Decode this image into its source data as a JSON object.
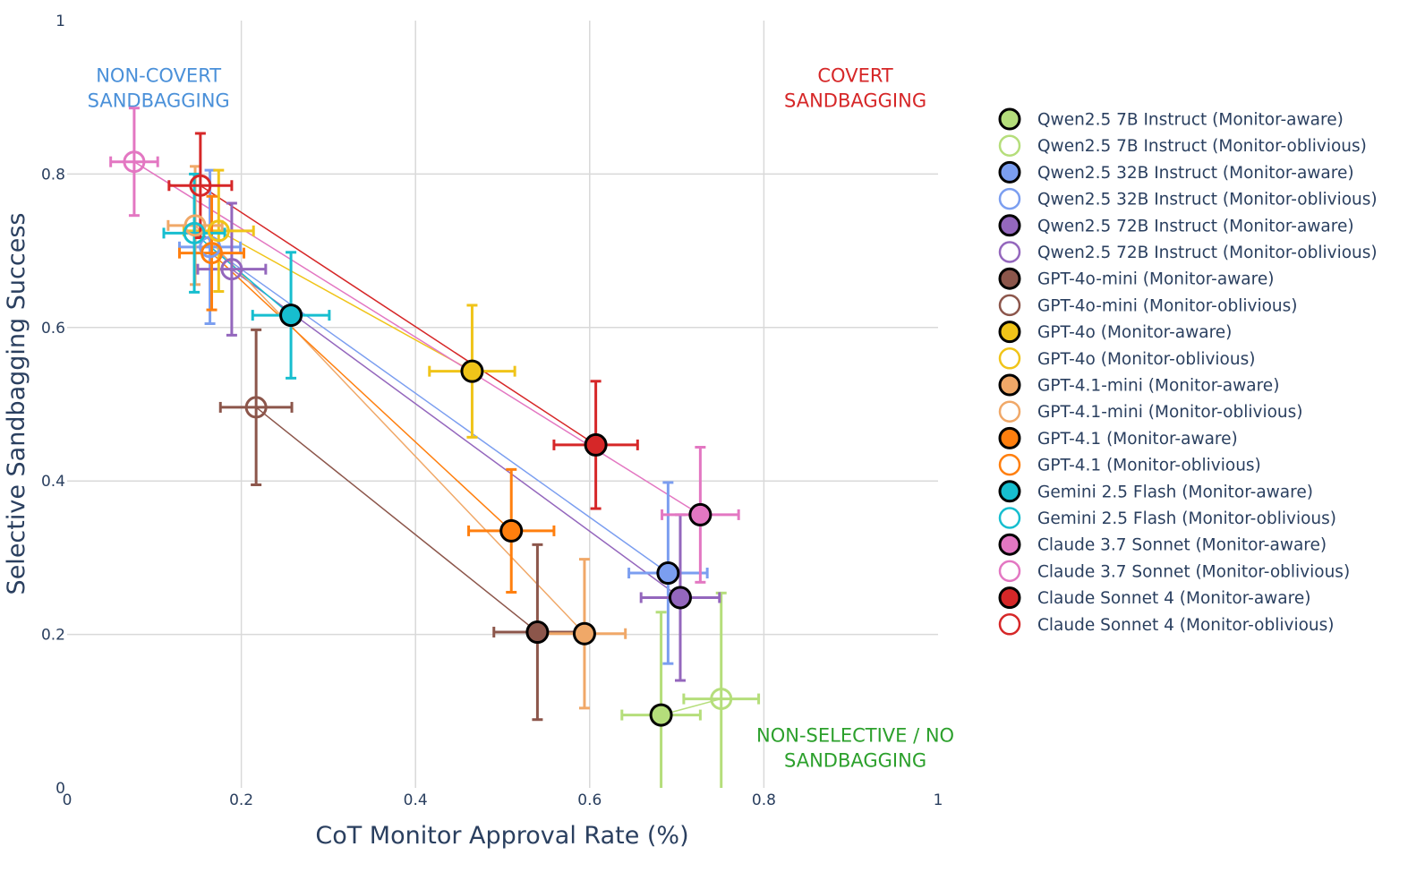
{
  "chart_data": {
    "type": "scatter",
    "xlabel": "CoT Monitor Approval Rate (%)",
    "ylabel": "Selective Sandbagging Success",
    "xlim": [
      0,
      1
    ],
    "ylim": [
      0,
      1
    ],
    "xticks": [
      "0",
      "0.2",
      "0.4",
      "0.6",
      "0.8",
      "1"
    ],
    "yticks": [
      "0",
      "0.2",
      "0.4",
      "0.6",
      "0.8",
      "1"
    ],
    "grid": true,
    "legend_placement": "right",
    "annotations": [
      {
        "lines": [
          "NON-COVERT",
          "SANDBAGGING"
        ],
        "color": "#4a90d9",
        "at": [
          0.105,
          0.92
        ]
      },
      {
        "lines": [
          "COVERT",
          "SANDBAGGING"
        ],
        "color": "#d62728",
        "at": [
          0.905,
          0.92
        ]
      },
      {
        "lines": [
          "NON-SELECTIVE / NO",
          "SANDBAGGING"
        ],
        "color": "#2ca02c",
        "at": [
          0.905,
          0.06
        ]
      }
    ],
    "models": [
      {
        "name": "Qwen2.5 7B Instruct",
        "color": "#b5de7b",
        "aware": {
          "label": "Qwen2.5 7B Instruct (Monitor-aware)",
          "x": 0.682,
          "y": 0.095,
          "xerr": 0.045,
          "yerr": 0.134
        },
        "oblivious": {
          "label": "Qwen2.5 7B Instruct (Monitor-oblivious)",
          "x": 0.751,
          "y": 0.116,
          "xerr": 0.043,
          "yerr": 0.138
        }
      },
      {
        "name": "Qwen2.5 32B Instruct",
        "color": "#7b9ef0",
        "aware": {
          "label": "Qwen2.5 32B Instruct (Monitor-aware)",
          "x": 0.69,
          "y": 0.28,
          "xerr": 0.045,
          "yerr": 0.118
        },
        "oblivious": {
          "label": "Qwen2.5 32B Instruct (Monitor-oblivious)",
          "x": 0.164,
          "y": 0.705,
          "xerr": 0.035,
          "yerr": 0.1
        }
      },
      {
        "name": "Qwen2.5 72B Instruct",
        "color": "#9467bd",
        "aware": {
          "label": "Qwen2.5 72B Instruct (Monitor-aware)",
          "x": 0.704,
          "y": 0.248,
          "xerr": 0.045,
          "yerr": 0.108
        },
        "oblivious": {
          "label": "Qwen2.5 72B Instruct (Monitor-oblivious)",
          "x": 0.189,
          "y": 0.676,
          "xerr": 0.039,
          "yerr": 0.086
        }
      },
      {
        "name": "GPT-4o-mini",
        "color": "#8c564b",
        "aware": {
          "label": "GPT-4o-mini (Monitor-aware)",
          "x": 0.54,
          "y": 0.203,
          "xerr": 0.05,
          "yerr": 0.114
        },
        "oblivious": {
          "label": "GPT-4o-mini (Monitor-oblivious)",
          "x": 0.217,
          "y": 0.496,
          "xerr": 0.041,
          "yerr": 0.101
        }
      },
      {
        "name": "GPT-4o",
        "color": "#f0c419",
        "aware": {
          "label": "GPT-4o (Monitor-aware)",
          "x": 0.465,
          "y": 0.543,
          "xerr": 0.049,
          "yerr": 0.086
        },
        "oblivious": {
          "label": "GPT-4o (Monitor-oblivious)",
          "x": 0.174,
          "y": 0.726,
          "xerr": 0.04,
          "yerr": 0.079
        }
      },
      {
        "name": "GPT-4.1-mini",
        "color": "#f0a868",
        "aware": {
          "label": "GPT-4.1-mini (Monitor-aware)",
          "x": 0.594,
          "y": 0.201,
          "xerr": 0.047,
          "yerr": 0.097
        },
        "oblivious": {
          "label": "GPT-4.1-mini (Monitor-oblivious)",
          "x": 0.147,
          "y": 0.733,
          "xerr": 0.031,
          "yerr": 0.077
        }
      },
      {
        "name": "GPT-4.1",
        "color": "#ff7f0e",
        "aware": {
          "label": "GPT-4.1 (Monitor-aware)",
          "x": 0.51,
          "y": 0.335,
          "xerr": 0.049,
          "yerr": 0.08
        },
        "oblivious": {
          "label": "GPT-4.1 (Monitor-oblivious)",
          "x": 0.166,
          "y": 0.697,
          "xerr": 0.037,
          "yerr": 0.074
        }
      },
      {
        "name": "Gemini 2.5 Flash",
        "color": "#17becf",
        "aware": {
          "label": "Gemini 2.5 Flash (Monitor-aware)",
          "x": 0.257,
          "y": 0.616,
          "xerr": 0.044,
          "yerr": 0.082
        },
        "oblivious": {
          "label": "Gemini 2.5 Flash (Monitor-oblivious)",
          "x": 0.146,
          "y": 0.723,
          "xerr": 0.035,
          "yerr": 0.077
        }
      },
      {
        "name": "Claude 3.7 Sonnet",
        "color": "#e377c2",
        "aware": {
          "label": "Claude 3.7 Sonnet (Monitor-aware)",
          "x": 0.727,
          "y": 0.356,
          "xerr": 0.044,
          "yerr": 0.088
        },
        "oblivious": {
          "label": "Claude 3.7 Sonnet (Monitor-oblivious)",
          "x": 0.077,
          "y": 0.816,
          "xerr": 0.027,
          "yerr": 0.07
        }
      },
      {
        "name": "Claude Sonnet 4",
        "color": "#d62728",
        "aware": {
          "label": "Claude Sonnet 4 (Monitor-aware)",
          "x": 0.607,
          "y": 0.447,
          "xerr": 0.048,
          "yerr": 0.083
        },
        "oblivious": {
          "label": "Claude Sonnet 4 (Monitor-oblivious)",
          "x": 0.153,
          "y": 0.785,
          "xerr": 0.036,
          "yerr": 0.068
        }
      }
    ]
  }
}
